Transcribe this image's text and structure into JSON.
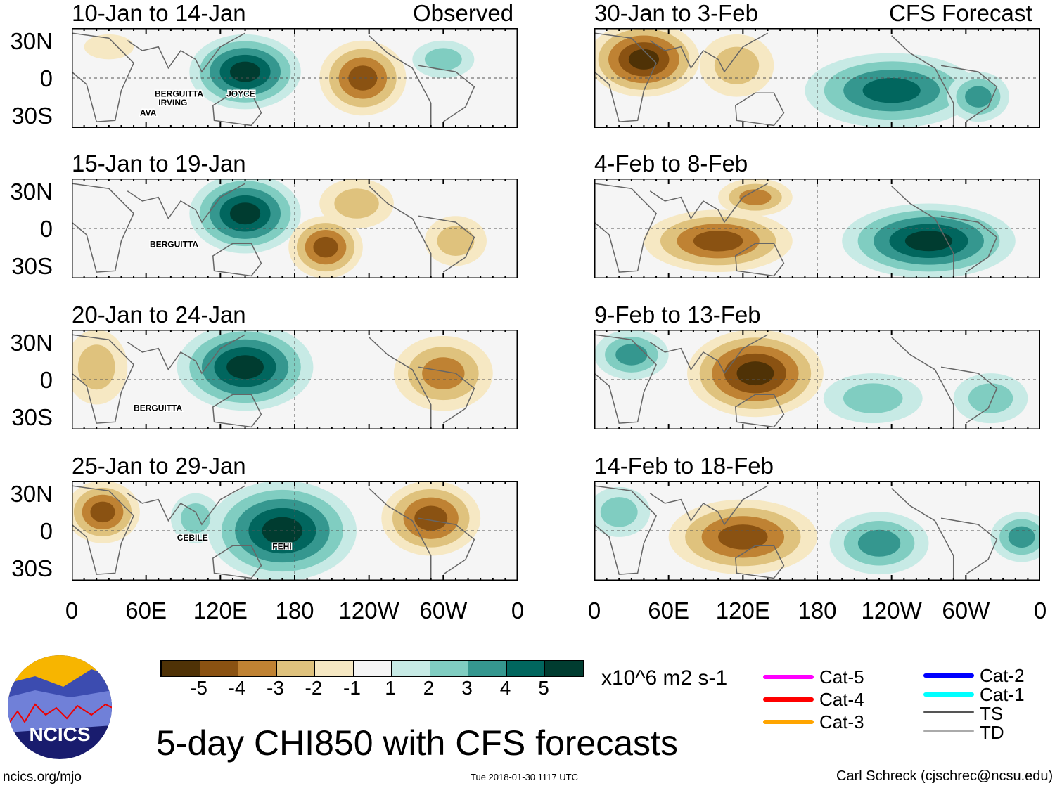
{
  "titles": {
    "observed": "Observed",
    "forecast": "CFS Forecast",
    "main": "5-day CHI850 with CFS forecasts",
    "units": "x10^6 m2 s-1",
    "site": "ncics.org/mjo",
    "timestamp": "Tue 2018-01-30 1117 UTC",
    "author": "Carl Schreck (cjschrec@ncsu.edu)",
    "logo": "NCICS"
  },
  "lat_labels": [
    "30N",
    "0",
    "30S"
  ],
  "lon_labels": [
    "0",
    "60E",
    "120E",
    "180",
    "120W",
    "60W",
    "0"
  ],
  "colorbar": {
    "labels": [
      "-5",
      "-4",
      "-3",
      "-2",
      "-1",
      "1",
      "2",
      "3",
      "4",
      "5"
    ],
    "colors": [
      "#4f3206",
      "#8a5212",
      "#bf8233",
      "#dfc27d",
      "#f6e8c3",
      "#f5f5f5",
      "#c7eae5",
      "#80cdc1",
      "#35978f",
      "#01665e",
      "#003c30"
    ]
  },
  "legend": [
    {
      "label": "Cat-5",
      "color": "#ff00ff"
    },
    {
      "label": "Cat-4",
      "color": "#ff0000"
    },
    {
      "label": "Cat-3",
      "color": "#ffa500"
    },
    {
      "label": "Cat-2",
      "color": "#0000ff"
    },
    {
      "label": "Cat-1",
      "color": "#00ffff"
    },
    {
      "label": "TS",
      "color": "#555555"
    },
    {
      "label": "TD",
      "color": "#aaaaaa"
    }
  ],
  "chart_data": {
    "type": "heatmap",
    "variable": "CHI850 anomaly",
    "lat_range": [
      -40,
      40
    ],
    "lon_range": [
      0,
      360
    ],
    "panels": [
      {
        "title": "10-Jan to 14-Jan",
        "col": 0,
        "row": 0,
        "blobs": [
          [
            140,
            5,
            45,
            30,
            5
          ],
          [
            235,
            0,
            35,
            30,
            -4
          ],
          [
            300,
            15,
            25,
            15,
            2
          ],
          [
            30,
            25,
            20,
            10,
            -1
          ]
        ],
        "storms": [
          {
            "name": "BERGUITTA",
            "lon": 67,
            "lat": -15
          },
          {
            "name": "IRVING",
            "lon": 70,
            "lat": -22
          },
          {
            "name": "JOYCE",
            "lon": 125,
            "lat": -15
          },
          {
            "name": "AVA",
            "lon": 55,
            "lat": -30
          }
        ]
      },
      {
        "title": "15-Jan to 19-Jan",
        "col": 0,
        "row": 0,
        "blobs": [
          [
            140,
            12,
            45,
            32,
            5
          ],
          [
            205,
            -15,
            30,
            25,
            -4
          ],
          [
            230,
            20,
            30,
            20,
            -2
          ],
          [
            310,
            -10,
            25,
            20,
            -2
          ]
        ],
        "storms": [
          {
            "name": "BERGUITTA",
            "lon": 63,
            "lat": -15
          }
        ]
      },
      {
        "title": "20-Jan to 24-Jan",
        "col": 0,
        "row": 0,
        "blobs": [
          [
            140,
            10,
            55,
            35,
            5
          ],
          [
            300,
            5,
            40,
            30,
            -3
          ],
          [
            20,
            10,
            25,
            30,
            -2
          ]
        ],
        "storms": [
          {
            "name": "BERGUITTA",
            "lon": 50,
            "lat": -25
          }
        ]
      },
      {
        "title": "25-Jan to 29-Jan",
        "col": 0,
        "row": 0,
        "blobs": [
          [
            170,
            0,
            60,
            40,
            5
          ],
          [
            25,
            15,
            30,
            25,
            -4
          ],
          [
            290,
            10,
            40,
            30,
            -4
          ],
          [
            100,
            10,
            20,
            20,
            2
          ]
        ],
        "storms": [
          {
            "name": "CEBILE",
            "lon": 85,
            "lat": -8
          },
          {
            "name": "FEHI",
            "lon": 162,
            "lat": -15
          }
        ]
      },
      {
        "title": "30-Jan to 3-Feb",
        "col": 1,
        "row": 0,
        "blobs": [
          [
            40,
            15,
            45,
            30,
            -5
          ],
          [
            240,
            -10,
            70,
            30,
            4
          ],
          [
            115,
            10,
            30,
            25,
            -2
          ],
          [
            310,
            -15,
            25,
            20,
            3
          ]
        ],
        "storms": []
      },
      {
        "title": "4-Feb to 8-Feb",
        "col": 1,
        "row": 0,
        "blobs": [
          [
            100,
            -10,
            60,
            25,
            -4
          ],
          [
            130,
            25,
            30,
            15,
            -3
          ],
          [
            270,
            -10,
            70,
            30,
            5
          ]
        ],
        "storms": []
      },
      {
        "title": "9-Feb to 13-Feb",
        "col": 1,
        "row": 0,
        "blobs": [
          [
            130,
            5,
            55,
            35,
            -5
          ],
          [
            30,
            20,
            30,
            20,
            3
          ],
          [
            225,
            -15,
            40,
            20,
            2
          ],
          [
            320,
            -15,
            30,
            20,
            2
          ]
        ],
        "storms": []
      },
      {
        "title": "14-Feb to 18-Feb",
        "col": 1,
        "row": 0,
        "blobs": [
          [
            120,
            -5,
            60,
            30,
            -4
          ],
          [
            230,
            -10,
            40,
            25,
            3
          ],
          [
            345,
            -5,
            25,
            20,
            3
          ],
          [
            20,
            15,
            25,
            20,
            2
          ]
        ],
        "storms": []
      }
    ]
  }
}
